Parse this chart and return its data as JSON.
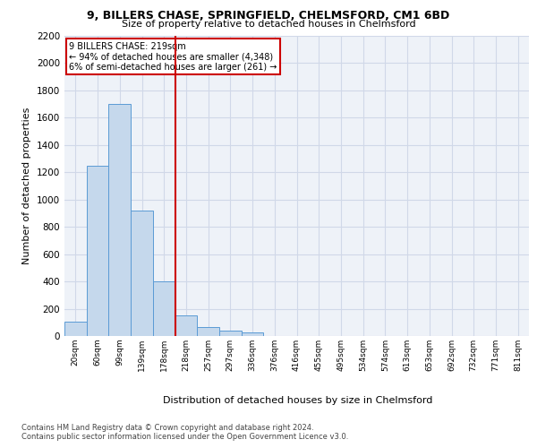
{
  "title": "9, BILLERS CHASE, SPRINGFIELD, CHELMSFORD, CM1 6BD",
  "subtitle": "Size of property relative to detached houses in Chelmsford",
  "xlabel": "Distribution of detached houses by size in Chelmsford",
  "ylabel": "Number of detached properties",
  "bin_labels": [
    "20sqm",
    "60sqm",
    "99sqm",
    "139sqm",
    "178sqm",
    "218sqm",
    "257sqm",
    "297sqm",
    "336sqm",
    "376sqm",
    "416sqm",
    "455sqm",
    "495sqm",
    "534sqm",
    "574sqm",
    "613sqm",
    "653sqm",
    "692sqm",
    "732sqm",
    "771sqm",
    "811sqm"
  ],
  "bar_heights": [
    105,
    1245,
    1700,
    920,
    400,
    150,
    68,
    40,
    27,
    0,
    0,
    0,
    0,
    0,
    0,
    0,
    0,
    0,
    0,
    0,
    0
  ],
  "bar_color": "#c5d8ec",
  "bar_edge_color": "#5b9bd5",
  "vline_x": 4.5,
  "annotation_lines": [
    "9 BILLERS CHASE: 219sqm",
    "← 94% of detached houses are smaller (4,348)",
    "6% of semi-detached houses are larger (261) →"
  ],
  "annotation_box_color": "#ffffff",
  "annotation_box_edge_color": "#cc0000",
  "vline_color": "#cc0000",
  "ylim": [
    0,
    2200
  ],
  "yticks": [
    0,
    200,
    400,
    600,
    800,
    1000,
    1200,
    1400,
    1600,
    1800,
    2000,
    2200
  ],
  "grid_color": "#d0d8e8",
  "background_color": "#eef2f8",
  "footer_line1": "Contains HM Land Registry data © Crown copyright and database right 2024.",
  "footer_line2": "Contains public sector information licensed under the Open Government Licence v3.0."
}
